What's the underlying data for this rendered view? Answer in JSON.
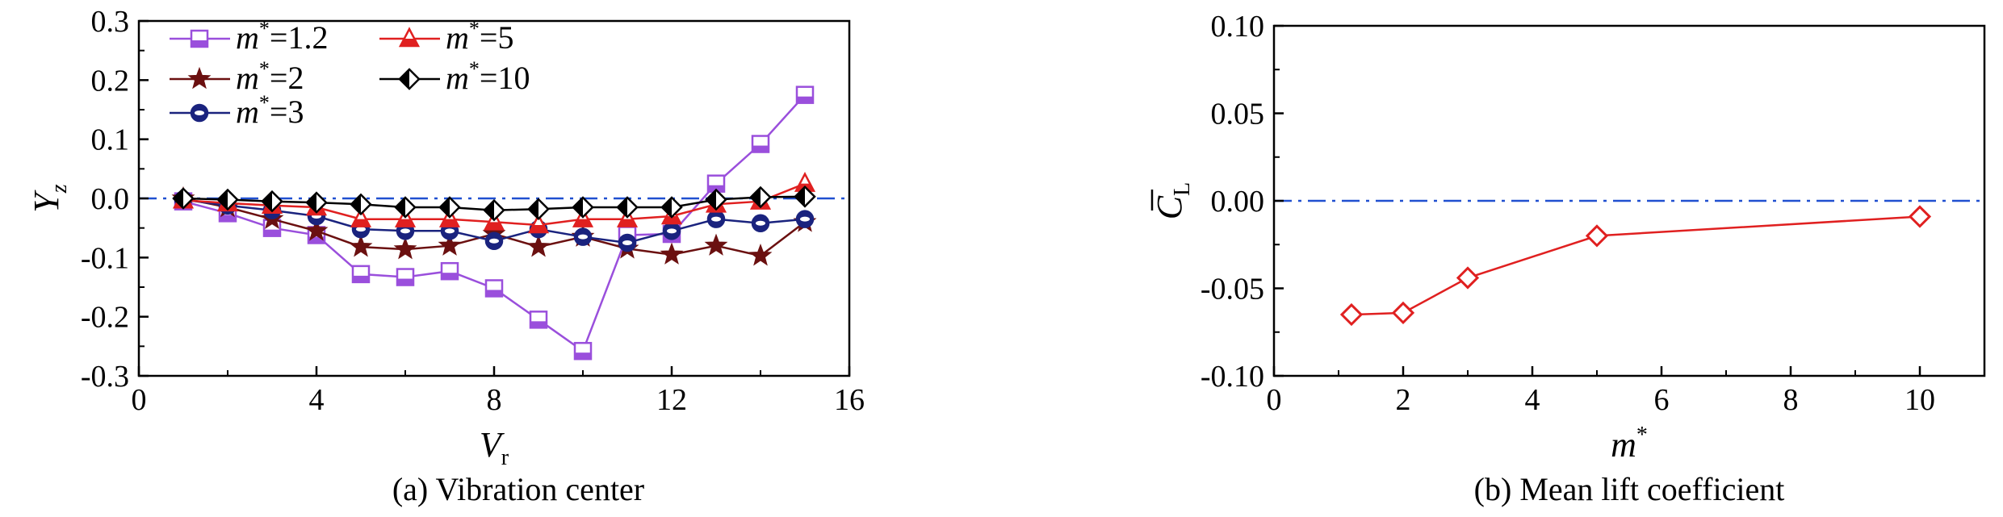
{
  "chart_data": [
    {
      "type": "line",
      "caption": "(a) Vibration center",
      "xlabel": "V",
      "xlabel_sub": "r",
      "ylabel": "Y",
      "ylabel_sub": "z",
      "xlim": [
        0,
        16
      ],
      "ylim": [
        -0.3,
        0.3
      ],
      "xticks": [
        "0",
        "4",
        "8",
        "12",
        "16"
      ],
      "xtick_values": [
        0,
        4,
        8,
        12,
        16
      ],
      "yticks": [
        "0.3",
        "0.2",
        "0.1",
        "0.0",
        "-0.1",
        "-0.2",
        "-0.3"
      ],
      "ytick_values": [
        0.3,
        0.2,
        0.1,
        0.0,
        -0.1,
        -0.2,
        -0.3
      ],
      "reference_line": 0,
      "legend_position": "top-left",
      "series": [
        {
          "name": "m*=1.2",
          "label_m": "m",
          "label_rest": "=1.2",
          "marker": "square",
          "color": "#9a4fdc",
          "x": [
            1,
            2,
            3,
            4,
            5,
            6,
            7,
            8,
            9,
            10,
            11,
            12,
            13,
            14,
            15
          ],
          "y": [
            -0.005,
            -0.025,
            -0.05,
            -0.062,
            -0.128,
            -0.133,
            -0.123,
            -0.152,
            -0.205,
            -0.258,
            -0.062,
            -0.06,
            0.025,
            0.092,
            0.175
          ]
        },
        {
          "name": "m*=2",
          "label_m": "m",
          "label_rest": "=2",
          "marker": "star",
          "color": "#6b1010",
          "x": [
            1,
            2,
            3,
            4,
            5,
            6,
            7,
            8,
            9,
            10,
            11,
            12,
            13,
            14,
            15
          ],
          "y": [
            0.0,
            -0.015,
            -0.035,
            -0.055,
            -0.082,
            -0.086,
            -0.08,
            -0.06,
            -0.082,
            -0.065,
            -0.085,
            -0.095,
            -0.08,
            -0.097,
            -0.04
          ]
        },
        {
          "name": "m*=3",
          "label_m": "m",
          "label_rest": "=3",
          "marker": "circle",
          "color": "#1a237e",
          "x": [
            1,
            2,
            3,
            4,
            5,
            6,
            7,
            8,
            9,
            10,
            11,
            12,
            13,
            14,
            15
          ],
          "y": [
            -0.002,
            -0.012,
            -0.02,
            -0.03,
            -0.052,
            -0.055,
            -0.055,
            -0.072,
            -0.052,
            -0.065,
            -0.075,
            -0.055,
            -0.035,
            -0.042,
            -0.035
          ]
        },
        {
          "name": "m*=5",
          "label_m": "m",
          "label_rest": "=5",
          "marker": "triangle",
          "color": "#e02020",
          "x": [
            1,
            2,
            3,
            4,
            5,
            6,
            7,
            8,
            9,
            10,
            11,
            12,
            13,
            14,
            15
          ],
          "y": [
            -0.003,
            -0.008,
            -0.012,
            -0.015,
            -0.035,
            -0.035,
            -0.035,
            -0.04,
            -0.045,
            -0.035,
            -0.035,
            -0.03,
            -0.01,
            -0.005,
            0.025
          ]
        },
        {
          "name": "m*=10",
          "label_m": "m",
          "label_rest": "=10",
          "marker": "diamond",
          "color": "#000000",
          "x": [
            1,
            2,
            3,
            4,
            5,
            6,
            7,
            8,
            9,
            10,
            11,
            12,
            13,
            14,
            15
          ],
          "y": [
            0.0,
            -0.002,
            -0.005,
            -0.007,
            -0.01,
            -0.015,
            -0.015,
            -0.02,
            -0.018,
            -0.015,
            -0.015,
            -0.015,
            -0.002,
            0.002,
            0.003
          ]
        }
      ]
    },
    {
      "type": "line",
      "caption": "(b) Mean lift coefficient",
      "xlabel": "m",
      "ylabel": "C",
      "ylabel_sub": "L",
      "xlim": [
        0,
        11
      ],
      "ylim": [
        -0.1,
        0.1
      ],
      "xticks": [
        "0",
        "2",
        "4",
        "6",
        "8",
        "10"
      ],
      "xtick_values": [
        0,
        2,
        4,
        6,
        8,
        10
      ],
      "yticks": [
        "0.10",
        "0.05",
        "0.00",
        "-0.05",
        "-0.10"
      ],
      "ytick_values": [
        0.1,
        0.05,
        0.0,
        -0.05,
        -0.1
      ],
      "reference_line": 0,
      "series": [
        {
          "marker": "diamond",
          "color": "#e02020",
          "x": [
            1.2,
            2,
            3,
            5,
            10
          ],
          "y": [
            -0.065,
            -0.064,
            -0.044,
            -0.02,
            -0.009
          ]
        }
      ]
    }
  ]
}
